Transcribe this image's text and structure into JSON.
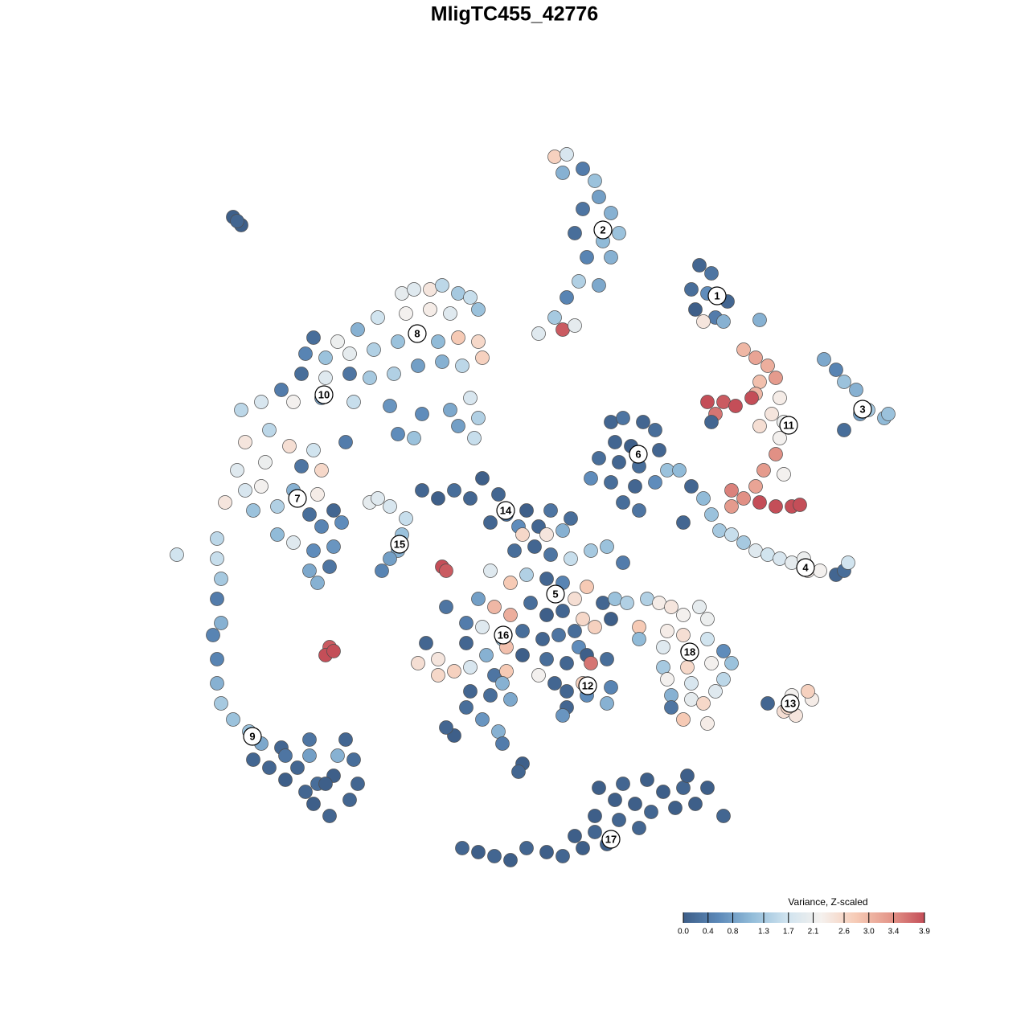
{
  "chart_data": {
    "type": "scatter",
    "title": "MligTC455_42776",
    "xlim": [
      -47,
      47
    ],
    "ylim": [
      -46,
      46
    ],
    "x": [
      2.5,
      4.0,
      3.5,
      6.0,
      7.5,
      8.0,
      9.5,
      6.0,
      5.0,
      8.5,
      10.5,
      6.5,
      9.5,
      5.5,
      8.0,
      4.0,
      2.5,
      3.5,
      0.5,
      5.0,
      20.5,
      22.0,
      19.5,
      21.5,
      24.0,
      20.0,
      22.5,
      21.0,
      23.5,
      28.0,
      36.0,
      37.5,
      38.5,
      40.0,
      41.5,
      43.5,
      40.5,
      38.5,
      44.0,
      26.0,
      27.5,
      29.0,
      28.0,
      30.0,
      27.5,
      21.5,
      23.5,
      25.0,
      27.0,
      22.5,
      29.5,
      30.5,
      31.0,
      28.0,
      22.0,
      30.5,
      30.0,
      28.5,
      31.0,
      24.5,
      26.0,
      27.5,
      28.0,
      30.0,
      32.0,
      33.0,
      24.5,
      9.5,
      11.0,
      13.5,
      15.0,
      10.0,
      12.0,
      15.5,
      8.0,
      10.5,
      13.0,
      16.5,
      18.0,
      7.0,
      9.5,
      12.5,
      15.0,
      11.0,
      13.0,
      19.5,
      21.0,
      22.0,
      18.5,
      23.0,
      24.5,
      26.0,
      27.5,
      29.0,
      30.5,
      32.0,
      33.5,
      34.0,
      35.5,
      37.5,
      38.5,
      39.0,
      -16.5,
      -15.0,
      -13.0,
      -11.5,
      -9.5,
      -8.0,
      -7.0,
      -10.5,
      -13.0,
      -16.0,
      -19.5,
      -22.0,
      -24.5,
      -27.5,
      -28.5,
      -26.0,
      -23.0,
      -20.0,
      -17.0,
      -14.5,
      -12.0,
      -9.5,
      -7.0,
      -6.5,
      -9.0,
      -11.5,
      -14.5,
      -17.5,
      -20.5,
      -23.0,
      -26.0,
      -29.0,
      -31.5,
      -34.0,
      -30.0,
      -26.5,
      -22.5,
      -18.0,
      -14.0,
      -10.5,
      -8.0,
      -7.0,
      -7.5,
      -9.5,
      -15.0,
      -17.0,
      -23.5,
      -36.5,
      -36.0,
      -33.0,
      -30.5,
      -27.5,
      -26.5,
      -29.0,
      -33.5,
      -37.0,
      -36.0,
      -34.0,
      -30.0,
      -27.0,
      -38.5,
      -35.0,
      -32.0,
      -28.0,
      -25.0,
      -32.0,
      -30.0,
      -26.5,
      -24.0,
      -27.5,
      -25.0,
      -28.0,
      -25.5,
      -27.0,
      -44.5,
      -39.5,
      -39.5,
      -39.0,
      -39.5,
      -39.0,
      -40.0,
      -39.5,
      -39.5,
      -39.0,
      -37.5,
      -35.5,
      -34.0,
      -31.5,
      -29.5,
      -28.0,
      -31.0,
      -33.0,
      -27.0,
      -24.5,
      -28.0,
      -22.5,
      -22.0,
      -25.0,
      -27.5,
      -23.0,
      -26.0,
      -25.5,
      -28.5,
      -31.0,
      -35.0,
      -23.5,
      -37.5,
      -36.5,
      -37.0,
      -25.5,
      -26.0,
      -25.0,
      -11.5,
      -11.0,
      -20.5,
      -19.5,
      -18.0,
      -16.0,
      -16.5,
      -17.0,
      -18.0,
      -19.0,
      -14.0,
      -12.0,
      -10.0,
      -8.0,
      -6.5,
      -4.5,
      -3.5,
      -5.5,
      -2.0,
      -1.0,
      0.5,
      2.0,
      1.5,
      -1.5,
      3.5,
      4.5,
      -2.5,
      0.0,
      2.0,
      4.5,
      7.0,
      9.0,
      11.0,
      -5.5,
      -3.0,
      -1.0,
      1.5,
      3.5,
      5.0,
      6.5,
      8.5,
      10.0,
      11.5,
      -7.0,
      -5.0,
      -3.0,
      -0.5,
      1.5,
      3.5,
      6.0,
      7.5,
      9.5,
      -11.0,
      -8.5,
      -6.5,
      -4.0,
      -1.5,
      1.0,
      3.0,
      5.0,
      5.5,
      -8.5,
      -6.0,
      -3.5,
      -1.5,
      1.5,
      4.0,
      6.5,
      9.0,
      -12.0,
      -13.5,
      -14.5,
      -12.0,
      -10.0,
      -8.0,
      -5.0,
      -3.5,
      0.5,
      2.5,
      4.0,
      6.0,
      7.0,
      9.5,
      6.5,
      9.0,
      4.0,
      3.5,
      -4.0,
      -5.5,
      -3.0,
      -8.0,
      -8.5,
      -6.5,
      -10.0,
      -11.0,
      -4.5,
      -4.0,
      -1.5,
      -2.0,
      14.0,
      15.5,
      17.0,
      18.5,
      20.5,
      21.5,
      13.0,
      13.0,
      16.5,
      18.5,
      21.5,
      16.0,
      19.0,
      23.5,
      24.5,
      16.0,
      19.0,
      22.0,
      16.5,
      19.5,
      23.5,
      17.0,
      19.5,
      22.5,
      17.0,
      18.5,
      21.0,
      21.5,
      29.0,
      31.0,
      32.0,
      34.5,
      34.0,
      32.5,
      31.5,
      -9.0,
      -7.0,
      -5.0,
      -3.0,
      -1.0,
      1.5,
      3.5,
      5.0,
      6.0,
      7.5,
      9.0,
      10.5,
      10.0,
      12.5,
      13.0,
      14.5,
      16.0,
      17.5,
      18.5,
      20.0,
      21.5,
      23.5,
      8.0,
      11.0,
      14.0,
      19.0,
      7.5
    ],
    "values": [
      44.5,
      44.8,
      42.5,
      43.0,
      41.5,
      39.5,
      37.5,
      38.0,
      35.0,
      34.0,
      35.0,
      32.0,
      32.0,
      29.0,
      28.5,
      27.0,
      24.5,
      23.0,
      22.5,
      23.5,
      31.0,
      30.0,
      28.0,
      27.5,
      26.5,
      25.5,
      24.5,
      24.0,
      24.0,
      24.2,
      19.3,
      18.0,
      16.5,
      15.5,
      13.0,
      12.0,
      12.5,
      10.5,
      12.5,
      20.5,
      19.5,
      18.5,
      16.5,
      17.0,
      15.0,
      14.0,
      14.0,
      13.5,
      14.5,
      12.5,
      12.5,
      14.5,
      11.5,
      11.0,
      11.5,
      9.5,
      7.5,
      5.5,
      5.0,
      3.0,
      2.0,
      3.5,
      1.5,
      1.0,
      1.0,
      1.2,
      1.0,
      11.5,
      12.0,
      11.5,
      10.5,
      9.0,
      8.5,
      8.0,
      7.0,
      6.5,
      6.0,
      5.5,
      5.5,
      4.5,
      4.0,
      3.5,
      4.0,
      1.5,
      0.5,
      3.5,
      2.0,
      0.0,
      -1.0,
      -2.0,
      -2.5,
      -3.5,
      -4.5,
      -5.0,
      -5.5,
      -6.0,
      -5.5,
      -7.0,
      -7.0,
      -7.5,
      -7.0,
      -6.0,
      27.5,
      28.0,
      28.0,
      28.5,
      27.5,
      27.0,
      25.5,
      25.0,
      25.5,
      25.0,
      24.5,
      23.0,
      21.5,
      22.0,
      20.0,
      19.5,
      20.0,
      20.5,
      21.5,
      22.5,
      21.5,
      22.0,
      21.5,
      19.5,
      18.5,
      19.0,
      18.5,
      17.5,
      17.0,
      17.5,
      17.0,
      17.5,
      15.5,
      14.0,
      14.0,
      14.5,
      14.0,
      13.5,
      12.5,
      13.0,
      14.5,
      12.0,
      9.5,
      11.0,
      9.5,
      10.0,
      9.0,
      13.0,
      9.0,
      10.5,
      8.5,
      8.0,
      5.5,
      6.0,
      6.5,
      5.5,
      3.0,
      3.5,
      3.0,
      2.5,
      1.5,
      0.5,
      1.0,
      0.0,
      0.5,
      -2.5,
      -3.5,
      -1.5,
      -1.0,
      -4.5,
      -4.0,
      -7.0,
      -6.5,
      -8.5,
      -5.0,
      -3.0,
      -5.5,
      -8.0,
      -10.5,
      -13.5,
      -15.0,
      -18.0,
      -21.0,
      -23.5,
      -25.5,
      -27.0,
      -28.5,
      -29.0,
      -31.5,
      -28.0,
      -33.0,
      -31.5,
      -33.5,
      -30.0,
      -30.0,
      -30.5,
      -33.5,
      -32.5,
      -36.0,
      -35.5,
      -33.5,
      -37.5,
      -34.5,
      -30.0,
      -30.5,
      -28.0,
      37.0,
      36.0,
      36.5,
      -16.5,
      -17.5,
      -17.0,
      -6.5,
      -7.0,
      1.5,
      2.0,
      1.0,
      -0.5,
      -2.5,
      -4.5,
      -5.5,
      -7.0,
      3.0,
      2.0,
      3.0,
      2.0,
      4.5,
      2.5,
      0.0,
      -1.0,
      -1.5,
      0.5,
      -1.5,
      0.5,
      -2.5,
      -2.5,
      -2.0,
      -0.5,
      -4.5,
      -4.0,
      -5.0,
      -5.5,
      -4.5,
      -4.0,
      -6.0,
      -7.0,
      -8.5,
      -7.5,
      -8.0,
      -8.5,
      -10.5,
      -9.0,
      -11.0,
      -10.5,
      -11.0,
      -10.5,
      -11.5,
      -12.5,
      -11.0,
      -12.5,
      -12.0,
      -13.0,
      -14.0,
      -13.0,
      -11.5,
      -13.5,
      -14.0,
      -15.5,
      -14.5,
      -15.5,
      -15.0,
      -14.5,
      -16.5,
      -16.0,
      -17.5,
      -16.5,
      -17.5,
      -18.0,
      -18.5,
      -17.5,
      -18.0,
      -18.0,
      -16.0,
      -18.5,
      -20.0,
      -19.5,
      -19.0,
      -20.0,
      -19.5,
      -20.0,
      -21.0,
      -22.0,
      -21.0,
      -18.5,
      -21.5,
      -22.5,
      -23.5,
      -24.0,
      -25.0,
      -21.0,
      -22.5,
      -23.0,
      -22.0,
      -24.0,
      -25.5,
      -27.5,
      -26.5,
      -27.0,
      -28.5,
      -31.0,
      -32.0,
      -10.5,
      -11.0,
      -11.5,
      -12.5,
      -11.5,
      -13.0,
      -14.0,
      -15.5,
      -14.5,
      -15.0,
      -15.5,
      -16.5,
      -17.0,
      -17.0,
      -18.5,
      -19.0,
      -19.0,
      -18.5,
      -20.5,
      -21.0,
      -20.5,
      -22.5,
      -23.0,
      -22.0,
      -24.0,
      -25.5,
      -23.5,
      -26.0,
      -23.5,
      -24.5,
      -22.5,
      -23.0,
      -22.0,
      -25.0,
      -24.0,
      -41.5,
      -42.0,
      -42.5,
      -43.0,
      -41.5,
      -42.0,
      -42.5,
      -40.0,
      -41.5,
      -39.5,
      -41.0,
      -38.0,
      -35.5,
      -36.0,
      -39.0,
      -37.0,
      -34.5,
      -36.5,
      -34.0,
      -36.0,
      -34.0,
      -37.5,
      -34.0,
      -33.5,
      -33.0,
      -32.5,
      -37.5
    ],
    "color_values": [
      2.7,
      1.8,
      1.0,
      0.4,
      1.2,
      0.8,
      1.0,
      0.3,
      0.2,
      1.1,
      1.2,
      0.5,
      1.0,
      1.4,
      0.9,
      0.5,
      1.3,
      3.8,
      1.9,
      2.0,
      0.1,
      0.3,
      0.2,
      0.6,
      0.1,
      0.0,
      0.4,
      2.4,
      1.0,
      1.0,
      0.9,
      0.5,
      1.2,
      1.0,
      1.3,
      1.1,
      0.8,
      0.2,
      1.2,
      3.0,
      3.2,
      3.1,
      2.9,
      3.3,
      3.0,
      3.9,
      3.8,
      3.9,
      3.9,
      3.6,
      2.4,
      2.3,
      2.1,
      2.5,
      0.1,
      2.2,
      3.4,
      3.3,
      2.2,
      3.5,
      3.4,
      3.2,
      3.9,
      3.9,
      3.9,
      3.9,
      3.3,
      0.1,
      0.3,
      0.1,
      0.2,
      0.1,
      0.0,
      0.1,
      0.2,
      0.1,
      0.2,
      1.2,
      1.1,
      0.6,
      0.2,
      0.1,
      0.6,
      0.2,
      0.3,
      0.1,
      1.1,
      1.2,
      0.1,
      1.3,
      1.6,
      1.3,
      1.9,
      1.7,
      1.8,
      2.0,
      2.1,
      2.3,
      2.2,
      0.1,
      0.2,
      1.7,
      2.0,
      1.9,
      2.4,
      1.5,
      1.3,
      1.6,
      1.2,
      1.9,
      2.3,
      2.2,
      1.7,
      1.0,
      2.1,
      0.2,
      0.5,
      1.2,
      2.0,
      1.4,
      1.2,
      1.3,
      1.1,
      2.8,
      2.6,
      2.7,
      1.5,
      1.0,
      0.8,
      1.4,
      1.3,
      0.3,
      1.9,
      0.2,
      0.4,
      1.8,
      2.2,
      0.8,
      1.6,
      0.7,
      0.6,
      0.9,
      1.8,
      1.4,
      1.6,
      0.8,
      1.2,
      0.6,
      0.4,
      1.5,
      2.4,
      1.5,
      2.5,
      1.7,
      2.6,
      0.3,
      2.1,
      1.9,
      1.8,
      2.2,
      1.0,
      2.3,
      2.4,
      1.2,
      1.4,
      0.2,
      0.1,
      1.1,
      1.9,
      0.5,
      0.6,
      0.6,
      0.7,
      0.9,
      0.3,
      1.0,
      1.7,
      1.5,
      1.6,
      1.3,
      0.4,
      1.0,
      0.5,
      0.5,
      1.0,
      1.3,
      1.2,
      1.2,
      0.9,
      0.1,
      0.1,
      0.3,
      0.0,
      0.1,
      0.2,
      1.0,
      0.8,
      0.2,
      0.1,
      0.0,
      0.0,
      0.1,
      0.0,
      0.1,
      0.1,
      0.3,
      0.1,
      0.1,
      0.0,
      0.0,
      0.1,
      3.8,
      3.9,
      3.9,
      3.9,
      3.8,
      2.0,
      1.9,
      1.8,
      1.6,
      1.2,
      1.0,
      0.8,
      0.5,
      0.1,
      0.0,
      0.2,
      0.1,
      0.0,
      0.1,
      0.2,
      0.1,
      0.6,
      0.0,
      0.1,
      0.3,
      2.4,
      2.6,
      1.0,
      0.2,
      0.2,
      0.1,
      0.3,
      1.6,
      1.3,
      1.2,
      0.4,
      1.9,
      2.8,
      1.4,
      0.1,
      0.5,
      2.5,
      2.8,
      0.1,
      1.2,
      1.4,
      0.8,
      3.0,
      3.1,
      0.2,
      0.0,
      0.1,
      2.6,
      2.7,
      0.0,
      0.3,
      0.4,
      1.9,
      1.1,
      0.2,
      0.1,
      0.3,
      0.2,
      0.6,
      0.1,
      1.0,
      2.9,
      0.0,
      0.2,
      0.1,
      0.0,
      0.2,
      2.4,
      0.1,
      2.5,
      2.6,
      2.7,
      1.8,
      0.3,
      2.8,
      2.2,
      0.1,
      0.1,
      2.7,
      3.6,
      0.5,
      0.6,
      1.0,
      0.1,
      0.7,
      1.0,
      0.2,
      0.9,
      0.1,
      0.2,
      0.7,
      0.0,
      0.1,
      1.0,
      0.4,
      0.0,
      0.1,
      1.4,
      2.3,
      2.4,
      2.2,
      2.0,
      2.1,
      2.8,
      1.1,
      2.3,
      2.5,
      1.7,
      1.9,
      2.1,
      0.6,
      1.2,
      1.3,
      2.6,
      2.2,
      2.2,
      1.8,
      1.5,
      1.0,
      2.0,
      1.9,
      0.3,
      2.8,
      2.6,
      2.3,
      0.1,
      2.5,
      2.2,
      2.3,
      2.7,
      2.4,
      2.6,
      0.1,
      0.0,
      0.1,
      0.0,
      0.1,
      0.0,
      0.1,
      0.0,
      0.0,
      0.1,
      0.0,
      0.1,
      0.0,
      0.0,
      0.1,
      0.1,
      0.0,
      0.0,
      0.1,
      0.0,
      0.0,
      0.1,
      0.0,
      0.1,
      0.0,
      0.0,
      0.0
    ],
    "cluster_labels": {
      "labels": [
        "1",
        "2",
        "3",
        "4",
        "5",
        "6",
        "7",
        "8",
        "9",
        "10",
        "11",
        "12",
        "13",
        "14",
        "15",
        "16",
        "17",
        "18"
      ],
      "x": [
        22.7,
        8.5,
        40.8,
        33.7,
        2.6,
        12.9,
        -29.5,
        -14.6,
        -35.1,
        -26.2,
        31.6,
        6.6,
        31.8,
        -3.6,
        -16.8,
        -3.9,
        9.5,
        19.3
      ],
      "y": [
        27.2,
        35.4,
        13.1,
        -6.6,
        -9.9,
        7.5,
        2.0,
        22.5,
        -27.6,
        14.9,
        11.1,
        -21.3,
        -23.5,
        0.5,
        -3.7,
        -15.0,
        -40.4,
        -17.1
      ]
    },
    "colorbar": {
      "title": "Variance, Z-scaled",
      "lim": [
        0,
        3.9
      ],
      "ticks": [
        {
          "value": 0,
          "label": "0.0"
        },
        0.4,
        0.8,
        1.3,
        1.7,
        2.1,
        2.6,
        {
          "value": 3,
          "label": "3.0"
        },
        3.4,
        3.9
      ],
      "colors": [
        "#3e5f89",
        "#5b88b8",
        "#92bcd9",
        "#cfe3ef",
        "#f5f1ee",
        "#f6cbb6",
        "#e4978a",
        "#c44e58"
      ]
    }
  }
}
